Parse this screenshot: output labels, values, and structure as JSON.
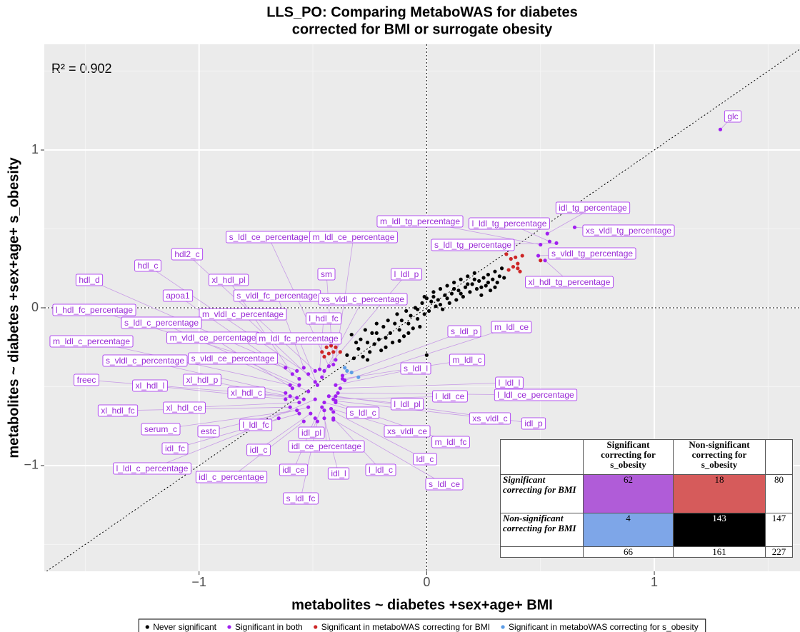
{
  "chart_data": {
    "type": "scatter",
    "title": [
      "LLS_PO: Comparing MetaboWAS for diabetes",
      "corrected for BMI or surrogate obesity"
    ],
    "x_label": "metabolites ~ diabetes +sex+age+ BMI",
    "y_label": "metabolites ~ diabetes +sex+age+ s_obesity",
    "annotation": "R² = 0.902",
    "xlim": [
      -1.68,
      1.64
    ],
    "ylim": [
      -1.67,
      1.67
    ],
    "xticks": [
      {
        "value": -1,
        "label": "−1"
      },
      0,
      1
    ],
    "yticks": [
      {
        "value": -1,
        "label": "−1"
      },
      0,
      1
    ],
    "grid": true,
    "hline": 0,
    "vline": 0,
    "identity_line": true,
    "legend": "bottom",
    "series": [
      {
        "name": "Never significant",
        "color": "#000000",
        "x": [
          -0.35,
          -0.33,
          -0.32,
          -0.3,
          -0.29,
          -0.28,
          -0.27,
          -0.26,
          -0.25,
          -0.24,
          -0.23,
          -0.22,
          -0.21,
          -0.2,
          -0.19,
          -0.18,
          -0.17,
          -0.16,
          -0.15,
          -0.14,
          -0.13,
          -0.12,
          -0.11,
          -0.1,
          -0.09,
          -0.08,
          -0.07,
          -0.06,
          -0.05,
          -0.04,
          -0.03,
          -0.02,
          -0.01,
          0.0,
          0.01,
          0.02,
          0.03,
          0.04,
          0.05,
          0.06,
          0.07,
          0.08,
          0.09,
          0.1,
          0.11,
          0.12,
          0.13,
          0.14,
          0.15,
          0.16,
          0.17,
          0.18,
          0.19,
          0.2,
          0.21,
          0.22,
          0.23,
          0.24,
          0.25,
          0.26,
          0.27,
          0.28,
          0.29,
          0.3,
          0.31,
          0.32,
          0.33,
          -0.31,
          -0.26,
          -0.22,
          -0.18,
          -0.12,
          -0.08,
          -0.04,
          0.0,
          0.03,
          0.06,
          0.09,
          0.12,
          0.15,
          0.18,
          0.21,
          0.24,
          0.27,
          0.3,
          0.34,
          -0.01
        ],
        "y": [
          -0.3,
          -0.17,
          -0.32,
          -0.26,
          -0.2,
          -0.31,
          -0.14,
          -0.22,
          -0.28,
          -0.16,
          -0.23,
          -0.1,
          -0.2,
          -0.27,
          -0.12,
          -0.19,
          -0.08,
          -0.16,
          -0.22,
          -0.1,
          -0.04,
          -0.14,
          -0.08,
          -0.18,
          -0.02,
          -0.1,
          -0.05,
          -0.13,
          0.0,
          -0.07,
          -0.12,
          0.03,
          -0.04,
          0.06,
          -0.02,
          0.04,
          0.1,
          0.01,
          0.05,
          0.12,
          -0.01,
          0.08,
          0.14,
          0.03,
          0.09,
          0.16,
          0.05,
          0.11,
          0.18,
          0.07,
          0.13,
          0.2,
          0.1,
          0.15,
          0.22,
          0.12,
          0.17,
          0.08,
          0.19,
          0.14,
          0.21,
          0.11,
          0.18,
          0.23,
          0.16,
          0.2,
          0.25,
          -0.22,
          -0.33,
          -0.16,
          -0.25,
          -0.21,
          -0.16,
          -0.01,
          -0.3,
          0.07,
          0.02,
          0.06,
          0.12,
          0.09,
          0.15,
          0.18,
          0.13,
          0.16,
          0.13,
          0.19,
          0.07
        ]
      },
      {
        "name": "Significant in both",
        "color": "#a020f0",
        "x": [
          1.29,
          0.53,
          0.65,
          0.5,
          0.54,
          0.57,
          0.49,
          0.52,
          -0.43,
          -0.4,
          -0.49,
          -0.52,
          -0.41,
          -0.45,
          -0.57,
          -0.59,
          -0.54,
          -0.46,
          -0.56,
          -0.62,
          -0.49,
          -0.47,
          -0.56,
          -0.37,
          -0.36,
          -0.6,
          -0.59,
          -0.48,
          -0.37,
          -0.62,
          -0.52,
          -0.4,
          -0.6,
          -0.57,
          -0.62,
          -0.38,
          -0.39,
          -0.54,
          -0.41,
          -0.43,
          -0.56,
          -0.6,
          -0.45,
          -0.4,
          -0.4,
          -0.57,
          -0.52,
          -0.49,
          -0.42,
          -0.46,
          -0.4,
          -0.45,
          -0.56,
          -0.51,
          -0.41,
          -0.65,
          -0.49,
          -0.45,
          -0.41,
          -0.54,
          -0.41,
          -0.48
        ],
        "y": [
          1.13,
          0.47,
          0.51,
          0.4,
          0.42,
          0.41,
          0.33,
          0.3,
          -0.37,
          -0.33,
          -0.4,
          -0.42,
          -0.36,
          -0.4,
          -0.4,
          -0.42,
          -0.38,
          -0.44,
          -0.45,
          -0.38,
          -0.47,
          -0.39,
          -0.49,
          -0.43,
          -0.46,
          -0.49,
          -0.51,
          -0.49,
          -0.45,
          -0.54,
          -0.53,
          -0.49,
          -0.56,
          -0.57,
          -0.58,
          -0.51,
          -0.54,
          -0.58,
          -0.58,
          -0.56,
          -0.6,
          -0.63,
          -0.6,
          -0.59,
          -0.56,
          -0.65,
          -0.63,
          -0.58,
          -0.64,
          -0.63,
          -0.6,
          -0.65,
          -0.67,
          -0.67,
          -0.66,
          -0.7,
          -0.7,
          -0.7,
          -0.7,
          -0.72,
          -0.71,
          -0.72
        ],
        "labels": [
          "glc",
          "idl_tg_percentage",
          "xs_vldl_tg_percentage",
          "m_ldl_tg_percentage",
          "l_ldl_tg_percentage",
          "s_ldl_tg_percentage",
          "s_vldl_tg_percentage",
          "xl_hdl_tg_percentage",
          "s_ldl_ce_percentage",
          "m_ldl_ce_percentage",
          "hdl2_c",
          "hdl_c",
          "sm",
          "l_ldl_p",
          "hdl_d",
          "xl_hdl_pl",
          "s_vldl_fc_percentage",
          "xs_vldl_c_percentage",
          "apoa1",
          "l_hdl_fc_percentage",
          "m_vldl_c_percentage",
          "l_hdl_fc",
          "s_ldl_c_percentage",
          "s_ldl_p",
          "m_ldl_ce",
          "m_ldl_c_percentage",
          "m_vldl_ce_percentage",
          "m_ldl_fc_percentage",
          "m_ldl_c",
          "s_vldl_c_percentage",
          "s_vldl_ce_percentage",
          "s_ldl_l",
          "freec",
          "xl_hdl_p",
          "xl_hdl_l",
          "l_ldl_l",
          "l_ldl_ce_percentage",
          "xl_hdl_c",
          "l_ldl_ce",
          "l_ldl_pl",
          "xl_hdl_ce",
          "xl_hdl_fc",
          "s_ldl_c",
          "xs_vldl_c",
          "idl_p",
          "serum_c",
          "estc",
          "l_ldl_fc",
          "xs_vldl_ce",
          "idl_pl",
          "m_ldl_fc",
          "idl_ce_percentage",
          "idl_fc",
          "idl_c",
          "ldl_c",
          "l_ldl_c_percentage",
          "idl_ce",
          "idl_l",
          "l_ldl_c",
          "idl_c_percentage",
          "s_ldl_ce",
          "s_ldl_fc"
        ]
      },
      {
        "name": "Significant in metaboWAS correcting for BMI",
        "color": "#cd2626",
        "x": [
          -0.46,
          -0.44,
          -0.42,
          -0.4,
          -0.43,
          -0.41,
          -0.38,
          -0.45,
          0.36,
          0.38,
          0.4,
          0.37,
          0.39,
          0.42,
          0.35,
          0.4,
          0.5,
          0.41
        ],
        "y": [
          -0.28,
          -0.25,
          -0.24,
          -0.25,
          -0.29,
          -0.28,
          -0.28,
          -0.31,
          0.24,
          0.26,
          0.28,
          0.31,
          0.32,
          0.33,
          0.34,
          0.25,
          0.3,
          0.23
        ]
      },
      {
        "name": "Significant in metaboWAS correcting for s_obesity",
        "color": "#5c9ce6",
        "x": [
          -0.36,
          -0.35,
          -0.33,
          -0.3
        ],
        "y": [
          -0.38,
          -0.4,
          -0.41,
          -0.44
        ]
      }
    ],
    "table": {
      "column_headers": [
        "Significant correcting for s_obesity",
        "Non-significant correcting for s_obesity"
      ],
      "rows": [
        {
          "label": "Significant correcting for BMI",
          "cells": [
            62,
            18
          ],
          "total": 80
        },
        {
          "label": "Non-significant correcting for BMI",
          "cells": [
            4,
            143
          ],
          "total": 147
        }
      ],
      "column_totals": [
        66,
        161
      ],
      "grand_total": 227,
      "cell_colors": [
        [
          "#b05cd8",
          "#d65b5b"
        ],
        [
          "#7ea6e8",
          "#000000"
        ]
      ]
    }
  }
}
